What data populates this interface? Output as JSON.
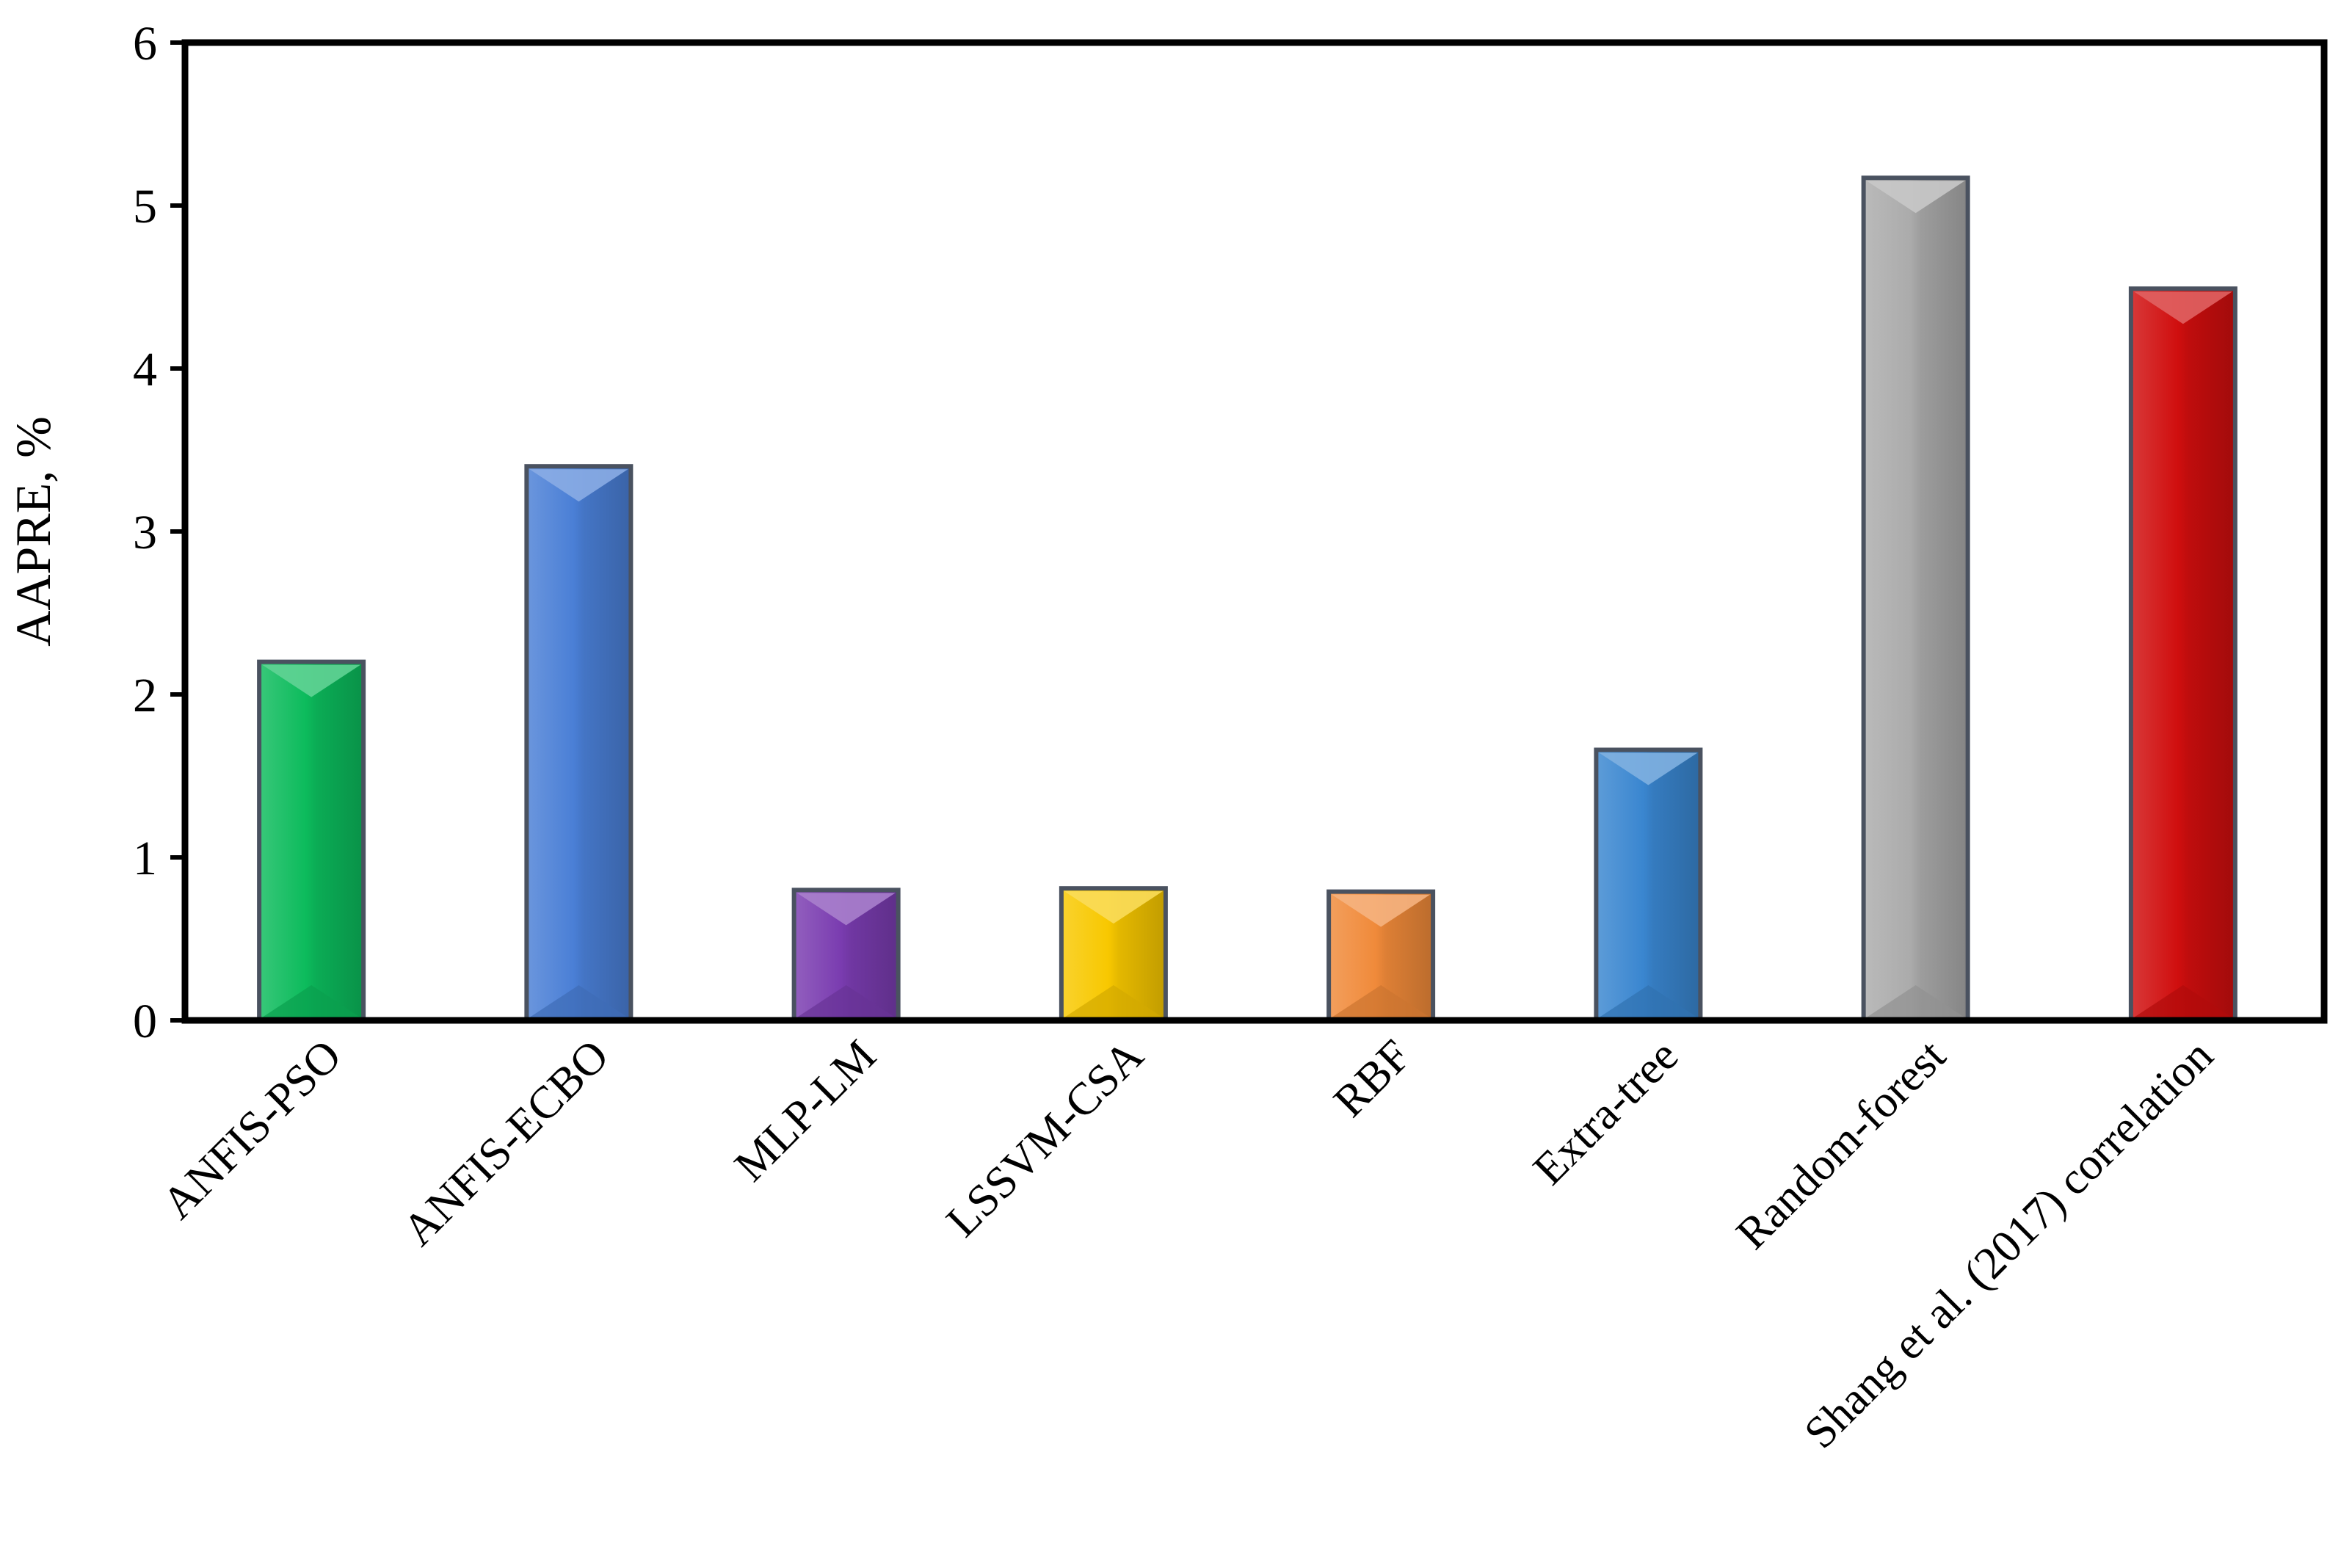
{
  "chart_data": {
    "type": "bar",
    "categories": [
      "ANFIS-PSO",
      "ANFIS-ECBO",
      "MLP-LM",
      "LSSVM-CSA",
      "RBF",
      "Extra-tree",
      "Random-forest",
      "Shang et al. (2017) correlation"
    ],
    "values": [
      2.2,
      3.4,
      0.8,
      0.81,
      0.79,
      1.66,
      5.17,
      4.49
    ],
    "colors": [
      "#0cbb5c",
      "#4a7fd6",
      "#7a3cb0",
      "#f8c800",
      "#f08a3a",
      "#3a86d0",
      "#ababab",
      "#d00e0e"
    ],
    "xlabel": "",
    "ylabel": "AAPRE, %",
    "ylim": [
      0,
      6
    ],
    "yticks": [
      0,
      1,
      2,
      3,
      4,
      5,
      6
    ],
    "grid": false,
    "legend": "none"
  }
}
